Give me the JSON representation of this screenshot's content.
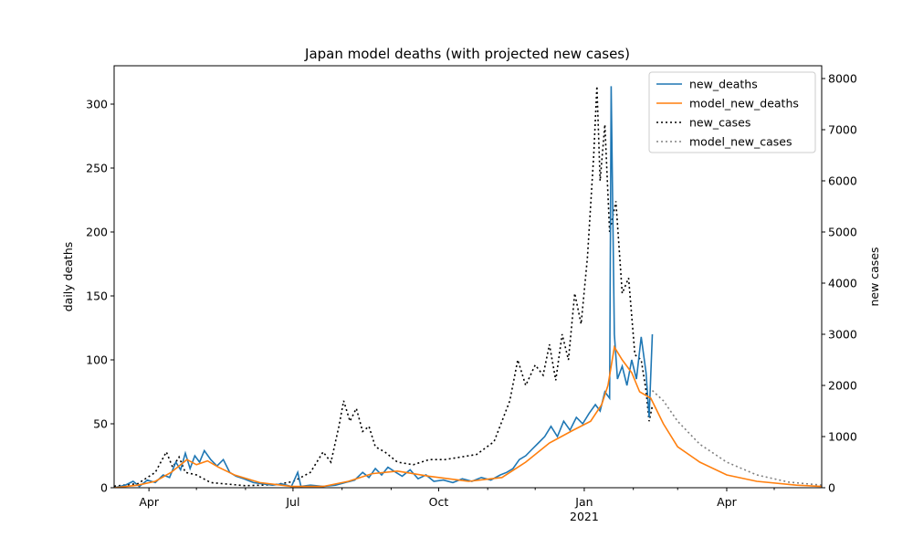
{
  "chart_data": {
    "type": "line",
    "title": "Japan model deaths (with projected new cases)",
    "ylabel": "daily deaths",
    "ylabel_right": "new cases",
    "ylim": [
      0,
      330
    ],
    "ylim_right": [
      0,
      8250
    ],
    "xlim": [
      "2020-03-10",
      "2021-05-31"
    ],
    "yticks": [
      0,
      50,
      100,
      150,
      200,
      250,
      300
    ],
    "yticks_right": [
      0,
      1000,
      2000,
      3000,
      4000,
      5000,
      6000,
      7000,
      8000
    ],
    "xticks": [
      {
        "date": "2020-04-01",
        "label": "Apr",
        "sublabel": ""
      },
      {
        "date": "2020-07-01",
        "label": "Jul",
        "sublabel": ""
      },
      {
        "date": "2020-10-01",
        "label": "Oct",
        "sublabel": ""
      },
      {
        "date": "2021-01-01",
        "label": "Jan",
        "sublabel": "2021"
      },
      {
        "date": "2021-04-01",
        "label": "Apr",
        "sublabel": ""
      }
    ],
    "legend_position": "top-right",
    "grid": false,
    "series": [
      {
        "name": "new_deaths",
        "axis": "left",
        "color": "#1f77b4",
        "style": "solid",
        "points": [
          [
            "2020-03-10",
            0
          ],
          [
            "2020-03-17",
            2
          ],
          [
            "2020-03-22",
            5
          ],
          [
            "2020-03-26",
            1
          ],
          [
            "2020-03-31",
            6
          ],
          [
            "2020-04-05",
            4
          ],
          [
            "2020-04-10",
            10
          ],
          [
            "2020-04-14",
            8
          ],
          [
            "2020-04-18",
            20
          ],
          [
            "2020-04-21",
            14
          ],
          [
            "2020-04-24",
            27
          ],
          [
            "2020-04-27",
            15
          ],
          [
            "2020-04-30",
            25
          ],
          [
            "2020-05-03",
            20
          ],
          [
            "2020-05-06",
            29
          ],
          [
            "2020-05-10",
            22
          ],
          [
            "2020-05-14",
            17
          ],
          [
            "2020-05-18",
            22
          ],
          [
            "2020-05-22",
            12
          ],
          [
            "2020-05-26",
            9
          ],
          [
            "2020-05-31",
            7
          ],
          [
            "2020-06-06",
            4
          ],
          [
            "2020-06-12",
            3
          ],
          [
            "2020-06-18",
            2
          ],
          [
            "2020-06-24",
            3
          ],
          [
            "2020-06-30",
            1
          ],
          [
            "2020-07-04",
            12
          ],
          [
            "2020-07-06",
            1
          ],
          [
            "2020-07-12",
            2
          ],
          [
            "2020-07-20",
            1
          ],
          [
            "2020-07-28",
            2
          ],
          [
            "2020-08-03",
            4
          ],
          [
            "2020-08-09",
            6
          ],
          [
            "2020-08-14",
            12
          ],
          [
            "2020-08-18",
            8
          ],
          [
            "2020-08-22",
            15
          ],
          [
            "2020-08-26",
            10
          ],
          [
            "2020-08-30",
            16
          ],
          [
            "2020-09-04",
            12
          ],
          [
            "2020-09-08",
            9
          ],
          [
            "2020-09-13",
            14
          ],
          [
            "2020-09-18",
            7
          ],
          [
            "2020-09-23",
            10
          ],
          [
            "2020-09-28",
            5
          ],
          [
            "2020-10-04",
            6
          ],
          [
            "2020-10-10",
            4
          ],
          [
            "2020-10-16",
            7
          ],
          [
            "2020-10-22",
            5
          ],
          [
            "2020-10-28",
            8
          ],
          [
            "2020-11-03",
            6
          ],
          [
            "2020-11-09",
            10
          ],
          [
            "2020-11-13",
            12
          ],
          [
            "2020-11-17",
            15
          ],
          [
            "2020-11-21",
            22
          ],
          [
            "2020-11-25",
            25
          ],
          [
            "2020-11-29",
            30
          ],
          [
            "2020-12-03",
            35
          ],
          [
            "2020-12-07",
            40
          ],
          [
            "2020-12-11",
            48
          ],
          [
            "2020-12-15",
            40
          ],
          [
            "2020-12-19",
            52
          ],
          [
            "2020-12-23",
            45
          ],
          [
            "2020-12-27",
            55
          ],
          [
            "2020-12-31",
            50
          ],
          [
            "2021-01-04",
            58
          ],
          [
            "2021-01-08",
            65
          ],
          [
            "2021-01-11",
            60
          ],
          [
            "2021-01-14",
            75
          ],
          [
            "2021-01-17",
            70
          ],
          [
            "2021-01-18",
            314
          ],
          [
            "2021-01-20",
            120
          ],
          [
            "2021-01-22",
            85
          ],
          [
            "2021-01-25",
            95
          ],
          [
            "2021-01-28",
            80
          ],
          [
            "2021-01-31",
            100
          ],
          [
            "2021-02-03",
            85
          ],
          [
            "2021-02-06",
            118
          ],
          [
            "2021-02-09",
            90
          ],
          [
            "2021-02-11",
            55
          ],
          [
            "2021-02-13",
            120
          ]
        ]
      },
      {
        "name": "model_new_deaths",
        "axis": "left",
        "color": "#ff7f0e",
        "style": "solid",
        "points": [
          [
            "2020-03-10",
            0
          ],
          [
            "2020-03-25",
            2
          ],
          [
            "2020-04-05",
            5
          ],
          [
            "2020-04-15",
            12
          ],
          [
            "2020-04-25",
            22
          ],
          [
            "2020-05-01",
            18
          ],
          [
            "2020-05-08",
            21
          ],
          [
            "2020-05-15",
            16
          ],
          [
            "2020-05-25",
            10
          ],
          [
            "2020-06-10",
            4
          ],
          [
            "2020-06-30",
            1
          ],
          [
            "2020-07-20",
            1
          ],
          [
            "2020-08-05",
            5
          ],
          [
            "2020-08-20",
            11
          ],
          [
            "2020-09-05",
            13
          ],
          [
            "2020-09-25",
            9
          ],
          [
            "2020-10-20",
            5
          ],
          [
            "2020-11-10",
            8
          ],
          [
            "2020-11-25",
            20
          ],
          [
            "2020-12-10",
            35
          ],
          [
            "2020-12-25",
            45
          ],
          [
            "2021-01-05",
            52
          ],
          [
            "2021-01-12",
            65
          ],
          [
            "2021-01-16",
            80
          ],
          [
            "2021-01-20",
            110
          ],
          [
            "2021-01-25",
            100
          ],
          [
            "2021-01-31",
            90
          ],
          [
            "2021-02-05",
            75
          ],
          [
            "2021-02-12",
            70
          ],
          [
            "2021-02-20",
            50
          ],
          [
            "2021-03-01",
            32
          ],
          [
            "2021-03-15",
            20
          ],
          [
            "2021-04-01",
            10
          ],
          [
            "2021-04-20",
            5
          ],
          [
            "2021-05-15",
            2
          ],
          [
            "2021-05-31",
            1
          ]
        ]
      },
      {
        "name": "new_cases",
        "axis": "right",
        "color": "#000000",
        "style": "dotted",
        "points": [
          [
            "2020-03-10",
            30
          ],
          [
            "2020-03-25",
            80
          ],
          [
            "2020-04-05",
            300
          ],
          [
            "2020-04-12",
            700
          ],
          [
            "2020-04-16",
            400
          ],
          [
            "2020-04-20",
            600
          ],
          [
            "2020-04-24",
            300
          ],
          [
            "2020-05-01",
            250
          ],
          [
            "2020-05-10",
            100
          ],
          [
            "2020-06-01",
            40
          ],
          [
            "2020-06-20",
            60
          ],
          [
            "2020-07-01",
            120
          ],
          [
            "2020-07-12",
            300
          ],
          [
            "2020-07-20",
            700
          ],
          [
            "2020-07-25",
            500
          ],
          [
            "2020-07-30",
            1200
          ],
          [
            "2020-08-02",
            1700
          ],
          [
            "2020-08-06",
            1300
          ],
          [
            "2020-08-10",
            1550
          ],
          [
            "2020-08-14",
            1100
          ],
          [
            "2020-08-18",
            1200
          ],
          [
            "2020-08-22",
            800
          ],
          [
            "2020-08-28",
            700
          ],
          [
            "2020-09-05",
            500
          ],
          [
            "2020-09-15",
            450
          ],
          [
            "2020-09-25",
            550
          ],
          [
            "2020-10-05",
            550
          ],
          [
            "2020-10-15",
            600
          ],
          [
            "2020-10-25",
            650
          ],
          [
            "2020-11-05",
            900
          ],
          [
            "2020-11-10",
            1300
          ],
          [
            "2020-11-15",
            1700
          ],
          [
            "2020-11-20",
            2500
          ],
          [
            "2020-11-25",
            2000
          ],
          [
            "2020-12-01",
            2400
          ],
          [
            "2020-12-06",
            2200
          ],
          [
            "2020-12-10",
            2800
          ],
          [
            "2020-12-14",
            2100
          ],
          [
            "2020-12-18",
            3000
          ],
          [
            "2020-12-22",
            2500
          ],
          [
            "2020-12-26",
            3800
          ],
          [
            "2020-12-30",
            3200
          ],
          [
            "2021-01-03",
            4500
          ],
          [
            "2021-01-07",
            6500
          ],
          [
            "2021-01-09",
            7850
          ],
          [
            "2021-01-11",
            6000
          ],
          [
            "2021-01-14",
            7100
          ],
          [
            "2021-01-17",
            5000
          ],
          [
            "2021-01-21",
            5600
          ],
          [
            "2021-01-25",
            3800
          ],
          [
            "2021-01-29",
            4100
          ],
          [
            "2021-02-02",
            2600
          ],
          [
            "2021-02-06",
            2500
          ],
          [
            "2021-02-09",
            1900
          ],
          [
            "2021-02-11",
            1300
          ],
          [
            "2021-02-13",
            1600
          ]
        ]
      },
      {
        "name": "model_new_cases",
        "axis": "right",
        "color": "#808080",
        "style": "dotted",
        "points": [
          [
            "2021-02-13",
            1900
          ],
          [
            "2021-02-20",
            1700
          ],
          [
            "2021-03-01",
            1300
          ],
          [
            "2021-03-15",
            850
          ],
          [
            "2021-04-01",
            500
          ],
          [
            "2021-04-20",
            250
          ],
          [
            "2021-05-10",
            110
          ],
          [
            "2021-05-31",
            50
          ]
        ]
      }
    ]
  }
}
